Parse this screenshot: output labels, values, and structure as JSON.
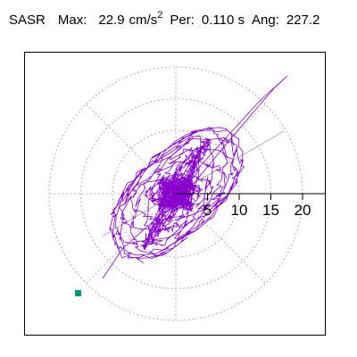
{
  "header": {
    "station": "SASR",
    "max_label": "Max:",
    "max_value": "22.9",
    "max_unit": "cm/s",
    "max_unit_exp": "2",
    "per_label": "Per:",
    "per_value": "0.110 s",
    "ang_label": "Ang:",
    "ang_value": "227.2"
  },
  "plot": {
    "tick_labels": [
      "5",
      "10",
      "15",
      "20"
    ],
    "trace_color": "#8800cc",
    "marker_color": "#009980",
    "grid_color": "#999999",
    "axis_color": "#000000",
    "angle_line_color": "#aaaaaa"
  }
}
